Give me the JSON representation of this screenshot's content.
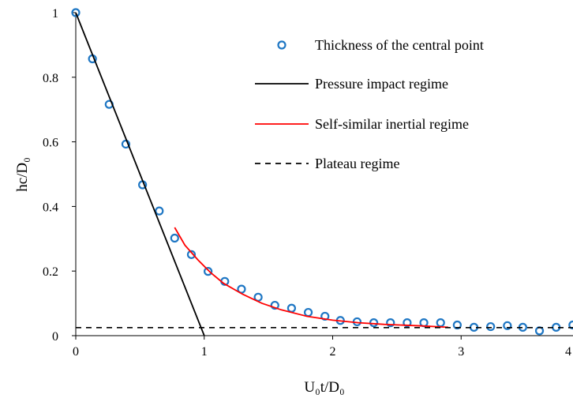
{
  "chart_data": {
    "type": "scatter",
    "title": "",
    "xlabel": "U₀t/D₀",
    "ylabel": "hc/D₀",
    "xlim": [
      0,
      4
    ],
    "ylim": [
      0,
      1
    ],
    "x_ticks": [
      "0",
      "1",
      "2",
      "3",
      "4"
    ],
    "y_ticks": [
      "0",
      "0.2",
      "0.4",
      "0.6",
      "0.8",
      "1"
    ],
    "grid": false,
    "legend_position": "top-right",
    "series": [
      {
        "name": "Thickness of the central point",
        "kind": "markers",
        "color": "#1f77c4",
        "x": [
          0.0,
          0.13,
          0.26,
          0.39,
          0.52,
          0.65,
          0.77,
          0.9,
          1.03,
          1.16,
          1.29,
          1.42,
          1.55,
          1.68,
          1.81,
          1.94,
          2.06,
          2.19,
          2.32,
          2.45,
          2.58,
          2.71,
          2.84,
          2.97,
          3.1,
          3.23,
          3.36,
          3.48,
          3.61,
          3.74,
          3.87,
          4.0
        ],
        "y": [
          1.0,
          0.857,
          0.716,
          0.593,
          0.467,
          0.386,
          0.302,
          0.251,
          0.199,
          0.168,
          0.144,
          0.119,
          0.094,
          0.085,
          0.072,
          0.06,
          0.047,
          0.043,
          0.04,
          0.04,
          0.04,
          0.04,
          0.04,
          0.033,
          0.026,
          0.028,
          0.031,
          0.026,
          0.015,
          0.026,
          0.033,
          0.033
        ]
      },
      {
        "name": "Pressure impact regime",
        "kind": "line",
        "color": "#000000",
        "x": [
          0.0,
          1.0
        ],
        "y": [
          1.0,
          0.0
        ]
      },
      {
        "name": "Self-similar inertial regime",
        "kind": "line",
        "color": "#ff0000",
        "x": [
          0.77,
          0.85,
          0.95,
          1.05,
          1.15,
          1.3,
          1.45,
          1.6,
          1.8,
          2.0,
          2.2,
          2.4,
          2.7,
          2.9
        ],
        "y": [
          0.335,
          0.28,
          0.235,
          0.195,
          0.162,
          0.128,
          0.1,
          0.08,
          0.06,
          0.048,
          0.04,
          0.035,
          0.03,
          0.026
        ]
      },
      {
        "name": "Plateau regime",
        "kind": "dashed-line",
        "color": "#000000",
        "x": [
          0.0,
          4.0
        ],
        "y": [
          0.025,
          0.025
        ]
      }
    ]
  }
}
